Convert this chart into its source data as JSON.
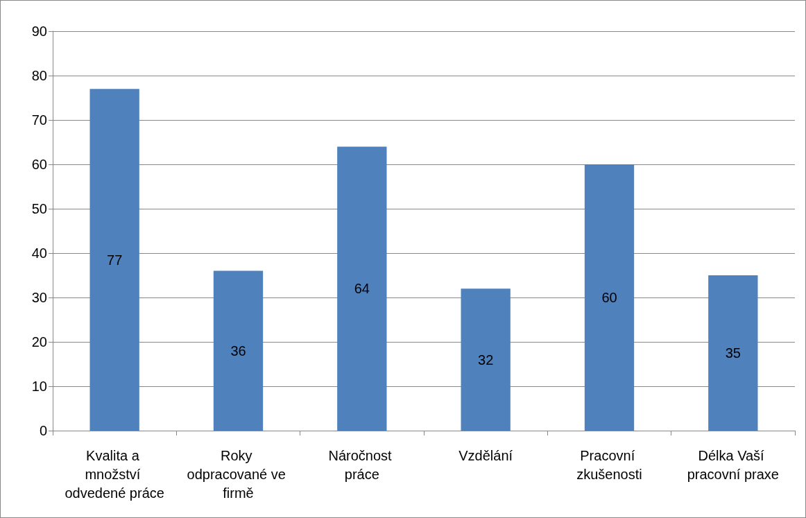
{
  "chart_data": {
    "type": "bar",
    "categories": [
      "Kvalita a množství odvedené práce",
      "Roky odpracované ve firmě",
      "Náročnost práce",
      "Vzdělání",
      "Pracovní zkušenosti",
      "Délka Vaší pracovní praxe"
    ],
    "values": [
      77,
      36,
      64,
      32,
      60,
      35
    ],
    "color": "#4f81bd",
    "ylim": [
      0,
      90
    ],
    "yticks": [
      0,
      10,
      20,
      30,
      40,
      50,
      60,
      70,
      80,
      90
    ],
    "grid": "y",
    "data_labels": true
  }
}
